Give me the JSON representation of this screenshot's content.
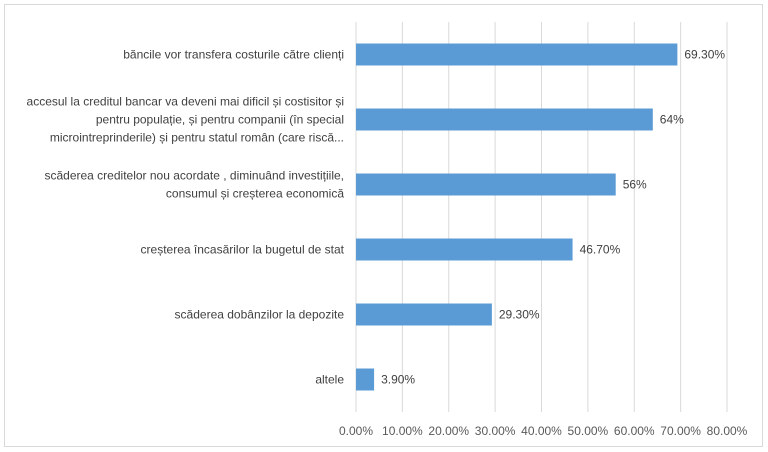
{
  "chart_data": {
    "type": "bar",
    "orientation": "horizontal",
    "categories": [
      [
        "băncile vor transfera costurile către clienți"
      ],
      [
        "accesul la creditul bancar va deveni mai dificil și costisitor și",
        "pentru populație, și pentru companii (în special",
        "microintreprinderile) și pentru statul român (care riscă..."
      ],
      [
        "scăderea creditelor nou acordate , diminuând investițiile,",
        "consumul și creșterea economică"
      ],
      [
        "creșterea încasărilor la bugetul de stat"
      ],
      [
        "scăderea dobânzilor la depozite"
      ],
      [
        "altele"
      ]
    ],
    "values": [
      69.3,
      64,
      56,
      46.7,
      29.3,
      3.9
    ],
    "data_labels": [
      "69.30%",
      "64%",
      "56%",
      "46.70%",
      "29.30%",
      "3.90%"
    ],
    "x_ticks": [
      "0.00%",
      "10.00%",
      "20.00%",
      "30.00%",
      "40.00%",
      "50.00%",
      "60.00%",
      "70.00%",
      "80.00%"
    ],
    "xlim": [
      0,
      80
    ],
    "grid": true,
    "legend": "none",
    "bar_color": "#5b9bd5",
    "grid_color": "#d9d9d9"
  }
}
